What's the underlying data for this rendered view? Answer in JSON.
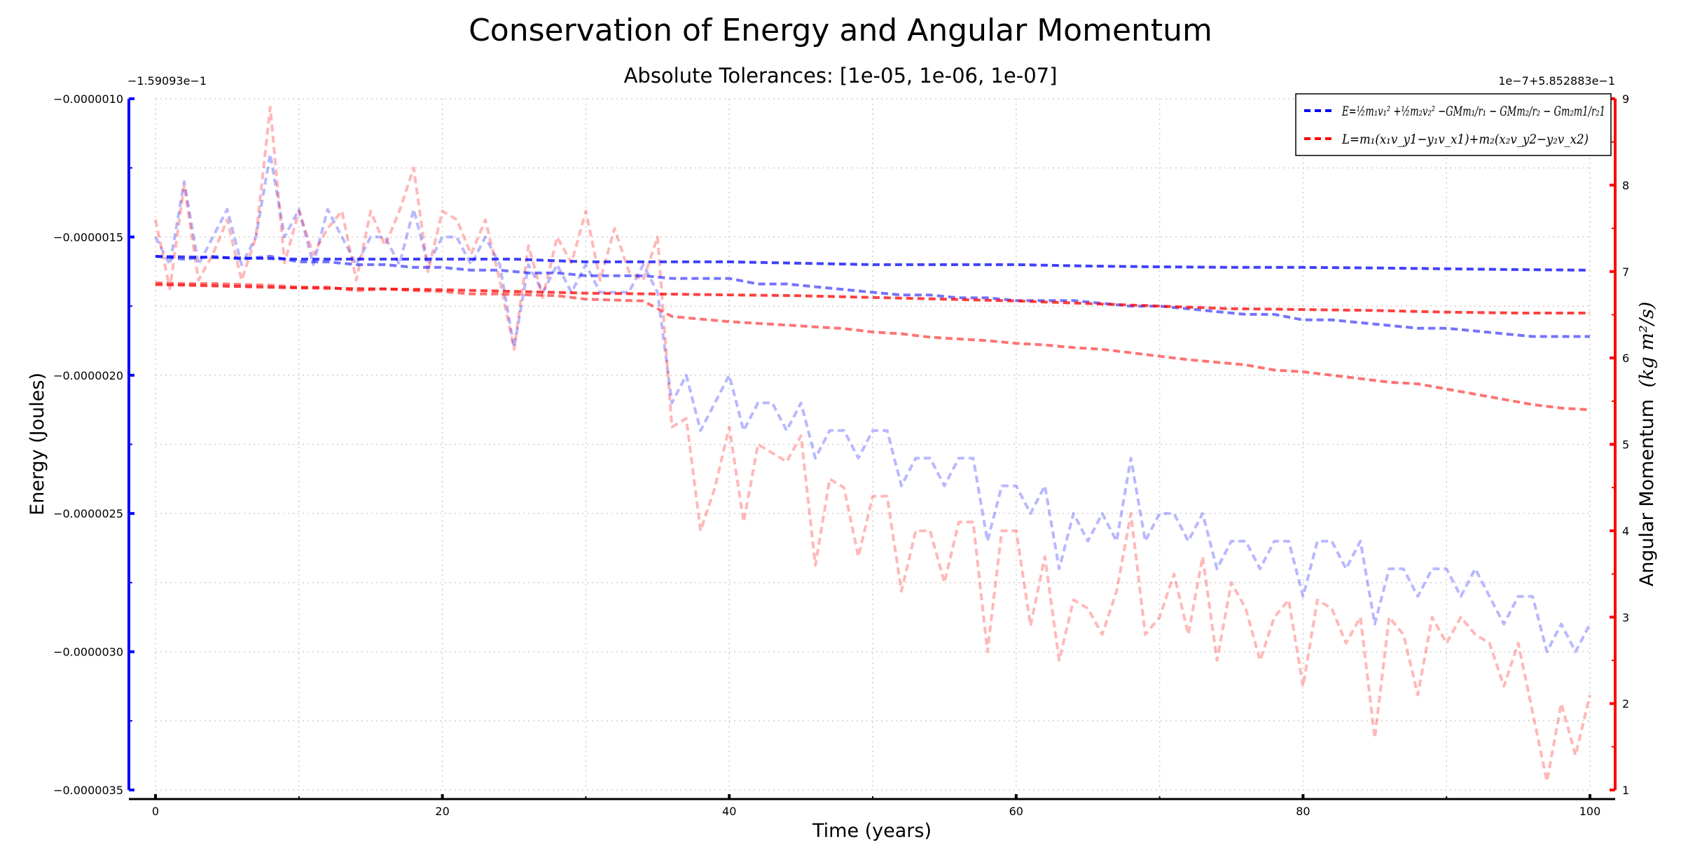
{
  "chart_data": {
    "type": "line",
    "title": "Conservation of Energy and Angular Momentum",
    "subtitle": "Absolute Tolerances: [1e-05, 1e-06, 1e-07]",
    "xlabel": "Time (years)",
    "ylabel_left": "Energy (Joules)",
    "ylabel_right": "Angular Momentum",
    "ylabel_right_units": "(kg m²/s)",
    "xlim": [
      0,
      100
    ],
    "xticks": [
      0,
      20,
      40,
      60,
      80,
      100
    ],
    "y_left": {
      "lim": [
        -3.5e-06,
        -1e-06
      ],
      "ticks": [
        -3.5e-06,
        -3e-06,
        -2.5e-06,
        -2e-06,
        -1.5e-06,
        -1e-06
      ],
      "tick_labels": [
        "−0.0000035",
        "−0.0000030",
        "−0.0000025",
        "−0.0000020",
        "−0.0000015",
        "−0.0000010"
      ],
      "offset_text": "−1.59093e−1",
      "color": "#0000ff"
    },
    "y_right": {
      "lim": [
        1,
        9
      ],
      "ticks": [
        1,
        2,
        3,
        4,
        5,
        6,
        7,
        8,
        9
      ],
      "tick_labels": [
        "1",
        "2",
        "3",
        "4",
        "5",
        "6",
        "7",
        "8",
        "9"
      ],
      "offset_text": "1e−7+5.852883e−1",
      "color": "#ff0000"
    },
    "grid": true,
    "legend_position": "top-right",
    "legend": [
      {
        "label": "E=½m₁v₁² +½m₂v₂² −GMm₁/r₁ − GMm₂/r₂ − Gm₂m1/r₂1",
        "color": "#0000ff"
      },
      {
        "label": "L=m₁(x₁v_y1−y₁v_x1)+m₂(x₂v_y2−y₂v_x2)",
        "color": "#ff0000"
      }
    ],
    "series": [
      {
        "axis": "left",
        "color": "#0000ff",
        "opacity": 0.75,
        "tolerance": "1e-07",
        "x": [
          0,
          5,
          10,
          15,
          20,
          25,
          30,
          35,
          40,
          45,
          50,
          55,
          60,
          65,
          70,
          75,
          80,
          85,
          90,
          95,
          100
        ],
        "y": [
          -1.57e-06,
          -1.575e-06,
          -1.58e-06,
          -1.58e-06,
          -1.58e-06,
          -1.58e-06,
          -1.59e-06,
          -1.59e-06,
          -1.59e-06,
          -1.595e-06,
          -1.6e-06,
          -1.6e-06,
          -1.6e-06,
          -1.605e-06,
          -1.608e-06,
          -1.61e-06,
          -1.61e-06,
          -1.612e-06,
          -1.615e-06,
          -1.618e-06,
          -1.62e-06
        ]
      },
      {
        "axis": "right",
        "color": "#ff0000",
        "opacity": 0.75,
        "tolerance": "1e-07",
        "x": [
          0,
          5,
          10,
          15,
          20,
          25,
          30,
          35,
          40,
          45,
          50,
          55,
          60,
          65,
          70,
          75,
          80,
          85,
          90,
          95,
          100
        ],
        "y": [
          6.85,
          6.83,
          6.81,
          6.8,
          6.79,
          6.77,
          6.75,
          6.74,
          6.73,
          6.72,
          6.7,
          6.68,
          6.66,
          6.63,
          6.6,
          6.57,
          6.56,
          6.55,
          6.53,
          6.52,
          6.52
        ]
      },
      {
        "axis": "left",
        "color": "#0000ff",
        "opacity": 0.55,
        "tolerance": "1e-06",
        "x": [
          0,
          2,
          4,
          6,
          8,
          10,
          12,
          14,
          16,
          18,
          20,
          22,
          24,
          26,
          28,
          30,
          32,
          34,
          36,
          38,
          40,
          42,
          44,
          46,
          48,
          50,
          52,
          54,
          56,
          58,
          60,
          62,
          64,
          66,
          68,
          70,
          72,
          74,
          76,
          78,
          80,
          82,
          84,
          86,
          88,
          90,
          92,
          94,
          96,
          98,
          100
        ],
        "y": [
          -1.57e-06,
          -1.58e-06,
          -1.57e-06,
          -1.58e-06,
          -1.57e-06,
          -1.59e-06,
          -1.59e-06,
          -1.6e-06,
          -1.6e-06,
          -1.61e-06,
          -1.61e-06,
          -1.62e-06,
          -1.62e-06,
          -1.63e-06,
          -1.63e-06,
          -1.64e-06,
          -1.64e-06,
          -1.64e-06,
          -1.65e-06,
          -1.65e-06,
          -1.65e-06,
          -1.67e-06,
          -1.67e-06,
          -1.68e-06,
          -1.69e-06,
          -1.7e-06,
          -1.71e-06,
          -1.71e-06,
          -1.72e-06,
          -1.72e-06,
          -1.73e-06,
          -1.73e-06,
          -1.73e-06,
          -1.74e-06,
          -1.75e-06,
          -1.75e-06,
          -1.76e-06,
          -1.77e-06,
          -1.78e-06,
          -1.78e-06,
          -1.8e-06,
          -1.8e-06,
          -1.81e-06,
          -1.82e-06,
          -1.83e-06,
          -1.83e-06,
          -1.84e-06,
          -1.85e-06,
          -1.86e-06,
          -1.86e-06,
          -1.86e-06
        ]
      },
      {
        "axis": "right",
        "color": "#ff0000",
        "opacity": 0.55,
        "tolerance": "1e-06",
        "x": [
          0,
          2,
          4,
          6,
          8,
          10,
          12,
          14,
          16,
          18,
          20,
          22,
          24,
          26,
          28,
          30,
          32,
          34,
          36,
          38,
          40,
          42,
          44,
          46,
          48,
          50,
          52,
          54,
          56,
          58,
          60,
          62,
          64,
          66,
          68,
          70,
          72,
          74,
          76,
          78,
          80,
          82,
          84,
          86,
          88,
          90,
          92,
          94,
          96,
          98,
          100
        ],
        "y": [
          6.87,
          6.86,
          6.86,
          6.85,
          6.84,
          6.82,
          6.82,
          6.78,
          6.8,
          6.78,
          6.77,
          6.74,
          6.74,
          6.73,
          6.72,
          6.68,
          6.67,
          6.66,
          6.48,
          6.45,
          6.42,
          6.4,
          6.38,
          6.36,
          6.34,
          6.3,
          6.28,
          6.24,
          6.22,
          6.2,
          6.17,
          6.15,
          6.12,
          6.1,
          6.06,
          6.02,
          5.98,
          5.95,
          5.92,
          5.86,
          5.84,
          5.8,
          5.76,
          5.72,
          5.7,
          5.64,
          5.58,
          5.52,
          5.46,
          5.42,
          5.4
        ]
      },
      {
        "axis": "left",
        "color": "#0000ff",
        "opacity": 0.28,
        "tolerance": "1e-05",
        "x": [
          0,
          1,
          2,
          3,
          4,
          5,
          6,
          7,
          8,
          9,
          10,
          11,
          12,
          13,
          14,
          15,
          16,
          17,
          18,
          19,
          20,
          21,
          22,
          23,
          24,
          25,
          26,
          27,
          28,
          29,
          30,
          31,
          32,
          33,
          34,
          35,
          36,
          37,
          38,
          39,
          40,
          41,
          42,
          43,
          44,
          45,
          46,
          47,
          48,
          49,
          50,
          51,
          52,
          53,
          54,
          55,
          56,
          57,
          58,
          59,
          60,
          61,
          62,
          63,
          64,
          65,
          66,
          67,
          68,
          69,
          70,
          71,
          72,
          73,
          74,
          75,
          76,
          77,
          78,
          79,
          80,
          81,
          82,
          83,
          84,
          85,
          86,
          87,
          88,
          89,
          90,
          91,
          92,
          93,
          94,
          95,
          96,
          97,
          98,
          99,
          100
        ],
        "y": [
          -1.5e-06,
          -1.6e-06,
          -1.3e-06,
          -1.6e-06,
          -1.5e-06,
          -1.4e-06,
          -1.6e-06,
          -1.5e-06,
          -1.2e-06,
          -1.5e-06,
          -1.4e-06,
          -1.6e-06,
          -1.4e-06,
          -1.5e-06,
          -1.6e-06,
          -1.5e-06,
          -1.5e-06,
          -1.6e-06,
          -1.4e-06,
          -1.6e-06,
          -1.5e-06,
          -1.5e-06,
          -1.6e-06,
          -1.5e-06,
          -1.6e-06,
          -1.9e-06,
          -1.6e-06,
          -1.7e-06,
          -1.6e-06,
          -1.7e-06,
          -1.6e-06,
          -1.7e-06,
          -1.7e-06,
          -1.7e-06,
          -1.6e-06,
          -1.7e-06,
          -2.1e-06,
          -2e-06,
          -2.2e-06,
          -2.1e-06,
          -2e-06,
          -2.2e-06,
          -2.1e-06,
          -2.1e-06,
          -2.2e-06,
          -2.1e-06,
          -2.3e-06,
          -2.2e-06,
          -2.2e-06,
          -2.3e-06,
          -2.2e-06,
          -2.2e-06,
          -2.4e-06,
          -2.3e-06,
          -2.3e-06,
          -2.4e-06,
          -2.3e-06,
          -2.3e-06,
          -2.6e-06,
          -2.4e-06,
          -2.4e-06,
          -2.5e-06,
          -2.4e-06,
          -2.7e-06,
          -2.5e-06,
          -2.6e-06,
          -2.5e-06,
          -2.6e-06,
          -2.3e-06,
          -2.6e-06,
          -2.5e-06,
          -2.5e-06,
          -2.6e-06,
          -2.5e-06,
          -2.7e-06,
          -2.6e-06,
          -2.6e-06,
          -2.7e-06,
          -2.6e-06,
          -2.6e-06,
          -2.8e-06,
          -2.6e-06,
          -2.6e-06,
          -2.7e-06,
          -2.6e-06,
          -2.9e-06,
          -2.7e-06,
          -2.7e-06,
          -2.8e-06,
          -2.7e-06,
          -2.7e-06,
          -2.8e-06,
          -2.7e-06,
          -2.8e-06,
          -2.9e-06,
          -2.8e-06,
          -2.8e-06,
          -3e-06,
          -2.9e-06,
          -3e-06,
          -2.9e-06
        ]
      },
      {
        "axis": "right",
        "color": "#ff0000",
        "opacity": 0.28,
        "tolerance": "1e-05",
        "x": [
          0,
          1,
          2,
          3,
          4,
          5,
          6,
          7,
          8,
          9,
          10,
          11,
          12,
          13,
          14,
          15,
          16,
          17,
          18,
          19,
          20,
          21,
          22,
          23,
          24,
          25,
          26,
          27,
          28,
          29,
          30,
          31,
          32,
          33,
          34,
          35,
          36,
          37,
          38,
          39,
          40,
          41,
          42,
          43,
          44,
          45,
          46,
          47,
          48,
          49,
          50,
          51,
          52,
          53,
          54,
          55,
          56,
          57,
          58,
          59,
          60,
          61,
          62,
          63,
          64,
          65,
          66,
          67,
          68,
          69,
          70,
          71,
          72,
          73,
          74,
          75,
          76,
          77,
          78,
          79,
          80,
          81,
          82,
          83,
          84,
          85,
          86,
          87,
          88,
          89,
          90,
          91,
          92,
          93,
          94,
          95,
          96,
          97,
          98,
          99,
          100
        ],
        "y": [
          7.6,
          6.8,
          8.0,
          6.9,
          7.2,
          7.6,
          6.9,
          7.4,
          8.9,
          7.1,
          7.7,
          7.2,
          7.5,
          7.7,
          6.9,
          7.7,
          7.3,
          7.7,
          8.2,
          7.0,
          7.7,
          7.6,
          7.2,
          7.6,
          6.9,
          6.1,
          7.3,
          6.7,
          7.4,
          7.1,
          7.7,
          6.9,
          7.5,
          7.0,
          6.9,
          7.4,
          5.2,
          5.3,
          4.0,
          4.5,
          5.2,
          4.1,
          5.0,
          4.9,
          4.8,
          5.1,
          3.6,
          4.6,
          4.5,
          3.7,
          4.4,
          4.4,
          3.3,
          4.0,
          4.0,
          3.4,
          4.1,
          4.1,
          2.6,
          4.0,
          4.0,
          2.9,
          3.7,
          2.5,
          3.2,
          3.1,
          2.8,
          3.3,
          4.2,
          2.8,
          3.0,
          3.5,
          2.8,
          3.7,
          2.5,
          3.4,
          3.1,
          2.5,
          3.0,
          3.2,
          2.2,
          3.2,
          3.1,
          2.7,
          3.0,
          1.6,
          3.0,
          2.8,
          2.1,
          3.0,
          2.7,
          3.0,
          2.8,
          2.7,
          2.2,
          2.7,
          1.9,
          1.1,
          2.0,
          1.4,
          2.1
        ]
      }
    ]
  }
}
